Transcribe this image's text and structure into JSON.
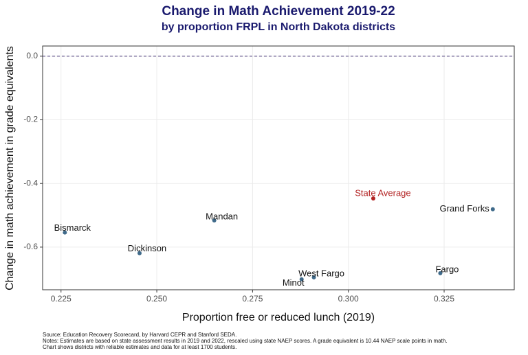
{
  "chart_data": {
    "type": "scatter",
    "title": "Change in Math Achievement 2019-22",
    "subtitle": "by proportion FRPL in North Dakota districts",
    "x_label": "Proportion free or reduced lunch (2019)",
    "y_label": "Change in math achievement in grade equivalents",
    "series": [
      {
        "name": "Districts",
        "color": "#3f6a8a",
        "labels": [
          "Bismarck",
          "Dickinson",
          "Mandan",
          "Minot",
          "West Fargo",
          "Grand Forks",
          "Fargo"
        ],
        "x": [
          0.226,
          0.2455,
          0.265,
          0.2878,
          0.291,
          0.3377,
          0.324
        ],
        "values": [
          -0.554,
          -0.619,
          -0.516,
          -0.701,
          -0.695,
          -0.481,
          -0.682
        ]
      },
      {
        "name": "State Average",
        "color": "#b22222",
        "labels": [
          "State Average"
        ],
        "x": [
          0.3065
        ],
        "values": [
          -0.447
        ]
      }
    ],
    "hline": 0,
    "xlim": [
      0.2202,
      0.3433
    ],
    "ylim": [
      -0.734,
      0.032
    ],
    "xticks": [
      0.225,
      {
        "value": 0.25,
        "label": "0.250"
      },
      0.275,
      {
        "value": 0.3,
        "label": "0.300"
      },
      0.325
    ],
    "yticks": [
      {
        "value": 0,
        "label": "0.0"
      },
      -0.2,
      -0.4,
      -0.6
    ],
    "grid": true,
    "notes": [
      "Source: Education Recovery Scorecard, by Harvard CEPR and Stanford SEDA.",
      "Notes: Estimates are based on state assessment results in 2019 and 2022, rescaled using state NAEP scores. A grade equivalent is 10.44 NAEP scale points in math.",
      "Chart shows districts with reliable estimates and data for at least 1700 students."
    ]
  }
}
